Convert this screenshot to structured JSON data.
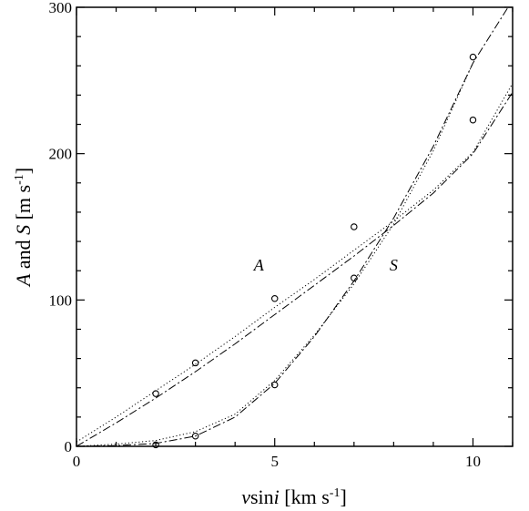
{
  "chart_data": {
    "type": "scatter",
    "title": "",
    "xlabel": {
      "prefix": "v",
      "mid": "sin",
      "italic": "i",
      "units": " [km s",
      "sup": "-1",
      "close": "]"
    },
    "ylabel": {
      "a": "A",
      "and": " and ",
      "s": "S",
      "units": " [m s",
      "sup": "-1",
      "close": "]"
    },
    "xlim": [
      0,
      11
    ],
    "ylim": [
      0,
      300
    ],
    "xticks": [
      0,
      5,
      10
    ],
    "yticks": [
      0,
      100,
      200,
      300
    ],
    "x_minor_step": 1,
    "y_minor_step": 20,
    "grid": false,
    "series": [
      {
        "name": "A",
        "points": [
          [
            2,
            36
          ],
          [
            3,
            57
          ],
          [
            5,
            101
          ],
          [
            7,
            150
          ],
          [
            10,
            223
          ]
        ],
        "fits": [
          {
            "style": "dashdot",
            "points": [
              [
                0,
                0
              ],
              [
                1,
                16
              ],
              [
                2,
                33
              ],
              [
                3,
                51
              ],
              [
                4,
                70
              ],
              [
                5,
                90
              ],
              [
                6,
                110
              ],
              [
                7,
                130
              ],
              [
                8,
                151
              ],
              [
                9,
                173
              ],
              [
                10,
                200
              ],
              [
                11,
                242
              ]
            ]
          },
          {
            "style": "dotted",
            "points": [
              [
                0,
                3
              ],
              [
                1,
                20
              ],
              [
                2,
                38
              ],
              [
                3,
                56
              ],
              [
                4,
                75
              ],
              [
                5,
                95
              ],
              [
                6,
                114
              ],
              [
                7,
                134
              ],
              [
                8,
                154
              ],
              [
                9,
                175
              ],
              [
                10,
                201
              ],
              [
                11,
                248
              ]
            ]
          }
        ]
      },
      {
        "name": "S",
        "points": [
          [
            2,
            1
          ],
          [
            3,
            7
          ],
          [
            5,
            42
          ],
          [
            7,
            115
          ],
          [
            10,
            266
          ]
        ],
        "fits": [
          {
            "style": "dashdot",
            "points": [
              [
                0,
                0
              ],
              [
                1,
                0.5
              ],
              [
                2,
                2
              ],
              [
                3,
                7
              ],
              [
                4,
                20
              ],
              [
                5,
                43
              ],
              [
                6,
                75
              ],
              [
                7,
                113
              ],
              [
                8,
                156
              ],
              [
                9,
                205
              ],
              [
                10,
                262
              ],
              [
                11,
                305
              ]
            ]
          },
          {
            "style": "dotted",
            "points": [
              [
                0,
                0
              ],
              [
                1,
                1.5
              ],
              [
                2,
                4
              ],
              [
                3,
                10
              ],
              [
                4,
                22
              ],
              [
                5,
                45
              ],
              [
                6,
                76
              ],
              [
                7,
                111
              ],
              [
                8,
                152
              ],
              [
                9,
                202
              ],
              [
                10,
                262
              ]
            ]
          }
        ]
      }
    ],
    "annotations": [
      {
        "text": "A",
        "x": 4.6,
        "y": 120
      },
      {
        "text": "S",
        "x": 8.0,
        "y": 120
      }
    ]
  }
}
